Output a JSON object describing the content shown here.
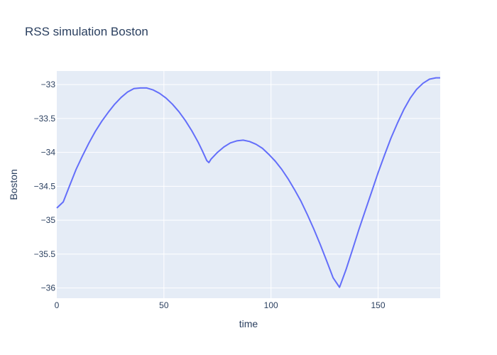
{
  "chart_data": {
    "type": "line",
    "title": "RSS simulation Boston",
    "xlabel": "time",
    "ylabel": "Boston",
    "xlim": [
      0,
      179
    ],
    "ylim": [
      -36.15,
      -32.8
    ],
    "x_ticks": [
      0,
      50,
      100,
      150
    ],
    "x_tick_labels": [
      "0",
      "50",
      "100",
      "150"
    ],
    "y_ticks": [
      -33,
      -33.5,
      -34,
      -34.5,
      -35,
      -35.5,
      -36
    ],
    "y_tick_labels": [
      "−33",
      "−33.5",
      "−34",
      "−34.5",
      "−35",
      "−35.5",
      "−36"
    ],
    "grid": true,
    "series": [
      {
        "color": "#636efa",
        "x": [
          0,
          3,
          6,
          9,
          12,
          15,
          18,
          21,
          24,
          27,
          30,
          33,
          36,
          39,
          42,
          45,
          48,
          51,
          54,
          57,
          60,
          63,
          66,
          68,
          70,
          71,
          72,
          75,
          78,
          81,
          84,
          87,
          90,
          93,
          96,
          99,
          102,
          105,
          108,
          111,
          114,
          117,
          120,
          123,
          126,
          129,
          132,
          135,
          138,
          141,
          144,
          147,
          150,
          153,
          156,
          159,
          162,
          165,
          168,
          171,
          174,
          177,
          179
        ],
        "y": [
          -34.82,
          -34.73,
          -34.49,
          -34.25,
          -34.05,
          -33.86,
          -33.69,
          -33.54,
          -33.41,
          -33.29,
          -33.19,
          -33.11,
          -33.06,
          -33.05,
          -33.05,
          -33.08,
          -33.13,
          -33.2,
          -33.29,
          -33.4,
          -33.53,
          -33.68,
          -33.85,
          -33.98,
          -34.12,
          -34.15,
          -34.1,
          -34.0,
          -33.92,
          -33.86,
          -33.83,
          -33.82,
          -33.84,
          -33.88,
          -33.94,
          -34.03,
          -34.13,
          -34.25,
          -34.39,
          -34.55,
          -34.72,
          -34.92,
          -35.13,
          -35.36,
          -35.6,
          -35.85,
          -35.99,
          -35.73,
          -35.44,
          -35.14,
          -34.86,
          -34.58,
          -34.3,
          -34.04,
          -33.79,
          -33.57,
          -33.37,
          -33.2,
          -33.07,
          -32.98,
          -32.92,
          -32.9,
          -32.9
        ]
      }
    ]
  }
}
